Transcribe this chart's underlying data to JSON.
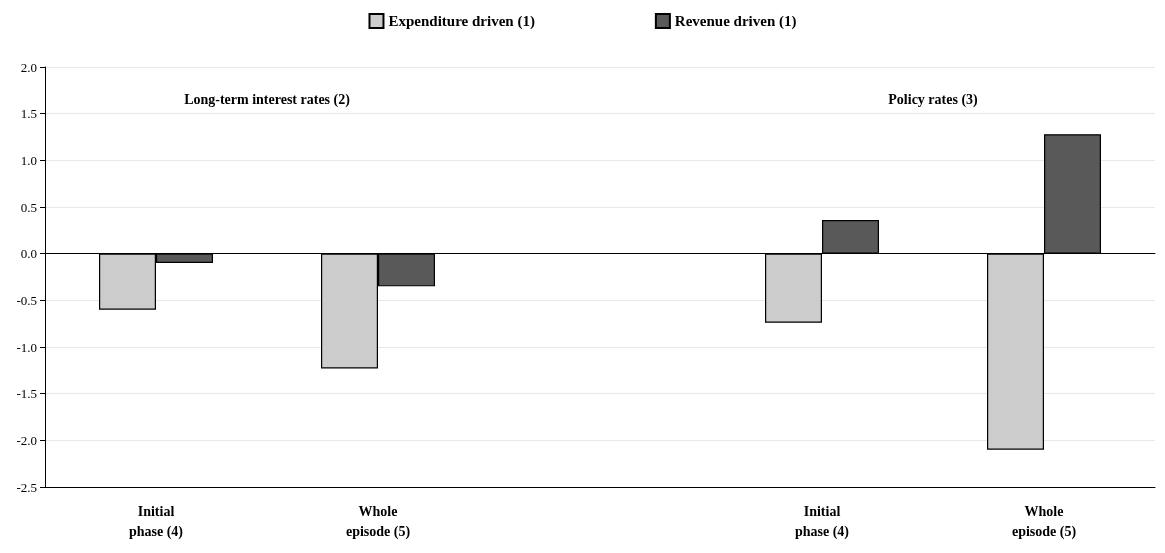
{
  "chart_data": {
    "type": "bar",
    "categories": [
      "Initial\nphase (4)",
      "Whole\nepisode (5)",
      null,
      "Initial\nphase (4)",
      "Whole\nepisode (5)"
    ],
    "series": [
      {
        "name": "Expenditure driven (1)",
        "color": "#cccccc",
        "values": [
          -0.6,
          -1.23,
          null,
          -0.74,
          -2.1
        ]
      },
      {
        "name": "Revenue driven (1)",
        "color": "#595959",
        "values": [
          -0.1,
          -0.35,
          null,
          0.36,
          1.28
        ]
      }
    ],
    "annotations": [
      "Long-term interest rates (2)",
      "Policy rates (3)"
    ],
    "ylim": [
      -2.5,
      2.0
    ],
    "yticks": [
      {
        "value": -2.5,
        "label": "-2.5"
      },
      {
        "value": -2.0,
        "label": "-2.0"
      },
      {
        "value": -1.5,
        "label": "-1.5"
      },
      {
        "value": -1.0,
        "label": "-1.0"
      },
      {
        "value": -0.5,
        "label": "-0.5"
      },
      {
        "value": 0,
        "label": "0.0"
      },
      {
        "value": 0.5,
        "label": "0.5"
      },
      {
        "value": 1.0,
        "label": "1.0"
      },
      {
        "value": 1.5,
        "label": "1.5"
      },
      {
        "value": 2.0,
        "label": "2.0"
      }
    ],
    "grid": "y",
    "legend": "top"
  }
}
